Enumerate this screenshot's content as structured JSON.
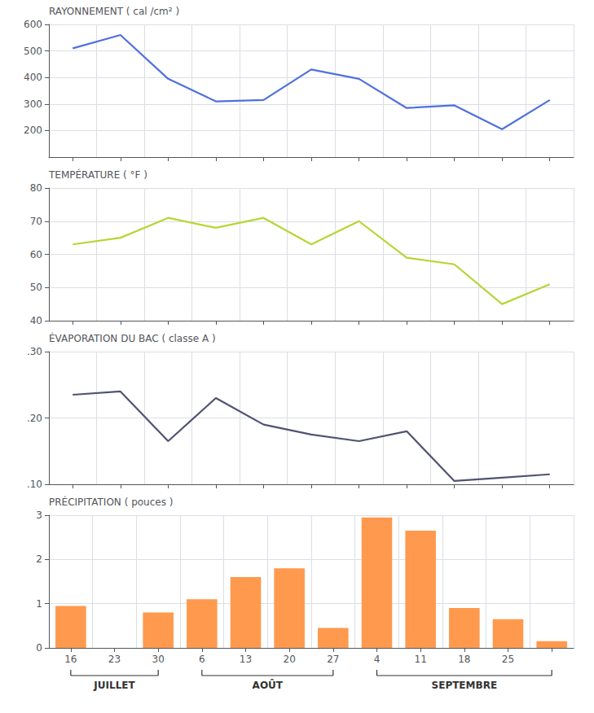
{
  "chart_data": [
    {
      "type": "line",
      "categories": [
        "16",
        "23",
        "30",
        "6",
        "13",
        "20",
        "27",
        "4",
        "11",
        "18",
        "25"
      ],
      "values": [
        510,
        560,
        395,
        310,
        315,
        430,
        395,
        285,
        295,
        205,
        315
      ],
      "ylabel": "RAYONNEMENT ( cal /cm² )",
      "ylim": [
        100,
        600
      ],
      "yticks": [
        200,
        300,
        400,
        500,
        600
      ],
      "grid": true,
      "tick_labels": "y"
    },
    {
      "type": "line",
      "categories": [
        "16",
        "23",
        "30",
        "6",
        "13",
        "20",
        "27",
        "4",
        "11",
        "18",
        "25"
      ],
      "values": [
        63,
        65,
        71,
        68,
        71,
        63,
        70,
        59,
        57,
        45,
        51
      ],
      "ylabel": "TEMPÉRATURE ( °F )",
      "ylim": [
        40,
        80
      ],
      "yticks": [
        40,
        50,
        60,
        70,
        80
      ],
      "grid": true,
      "tick_labels": "y"
    },
    {
      "type": "line",
      "categories": [
        "16",
        "23",
        "30",
        "6",
        "13",
        "20",
        "27",
        "4",
        "11",
        "18",
        "25"
      ],
      "values": [
        0.235,
        0.24,
        0.165,
        0.23,
        0.19,
        0.175,
        0.165,
        0.18,
        0.105,
        0.11,
        0.115
      ],
      "ylabel": "ÉVAPORATION DU BAC ( classe A )",
      "ylim": [
        0.1,
        0.3
      ],
      "yticks": [
        {
          "value": 0.1,
          "label": ".10"
        },
        {
          "value": 0.2,
          "label": ".20"
        },
        {
          "value": 0.3,
          "label": ".30"
        }
      ],
      "grid": true,
      "tick_labels": "y"
    },
    {
      "type": "bar",
      "categories": [
        "16",
        "23",
        "30",
        "6",
        "13",
        "20",
        "27",
        "4",
        "11",
        "18",
        "25",
        null
      ],
      "values": [
        0.95,
        0.0,
        0.8,
        1.1,
        1.6,
        1.8,
        0.45,
        2.95,
        2.65,
        0.9,
        0.65,
        0.15
      ],
      "ylabel": "PRÉCIPITATION ( pouces )",
      "ylim": [
        0,
        3
      ],
      "yticks": [
        0,
        1,
        2,
        3
      ],
      "grid": true,
      "annotations": [
        {
          "text": "JUILLET",
          "start": 0,
          "end": 2
        },
        {
          "text": "AOÛT",
          "start": 3,
          "end": 6
        },
        {
          "text": "SEPTEMBRE",
          "start": 7,
          "end": 11
        }
      ]
    }
  ]
}
